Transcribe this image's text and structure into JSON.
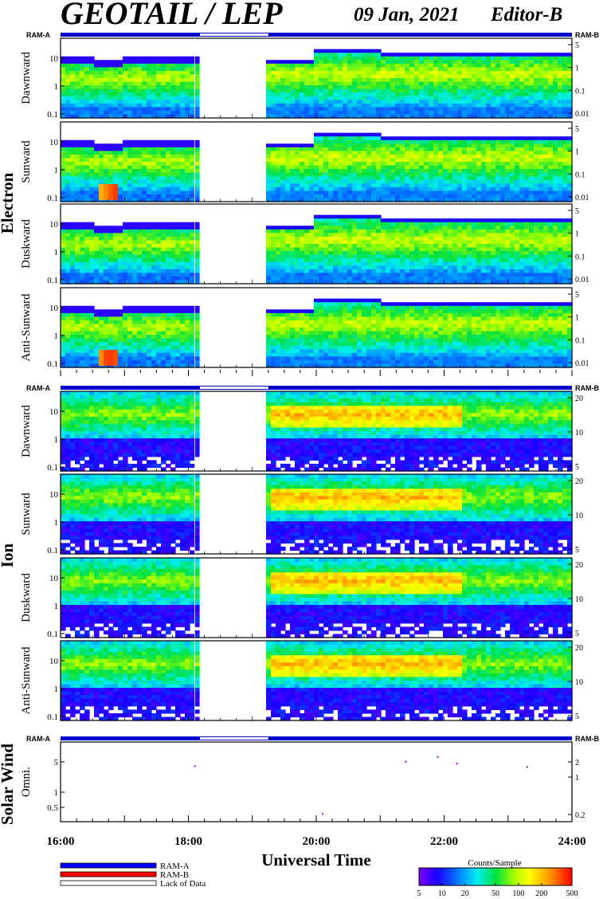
{
  "chart_data": {
    "type": "heatmap",
    "title": "GEOTAIL / LEP",
    "date": "09 Jan, 2021",
    "editor": "Editor-B",
    "xlabel": "Universal Time",
    "x_ticks": [
      "16:00",
      "18:00",
      "20:00",
      "22:00",
      "24:00"
    ],
    "x_range_hours": [
      16,
      24
    ],
    "data_gap_hours": [
      18.18,
      19.25
    ],
    "ram_label_left": "RAM-A",
    "ram_label_right": "RAM-B",
    "species": [
      {
        "name": "Electron",
        "panels": [
          {
            "label": "Dawnward",
            "y_ticks": [
              "10",
              "1",
              "0.1"
            ],
            "right_ticks": [
              "5",
              "1",
              "0.1",
              "0.01"
            ],
            "bursts": false
          },
          {
            "label": "Sunward",
            "y_ticks": [
              "10",
              "1",
              "0.1"
            ],
            "right_ticks": [
              "5",
              "1",
              "0.1",
              "0.01"
            ],
            "bursts": true
          },
          {
            "label": "Duskward",
            "y_ticks": [
              "10",
              "1",
              "0.1"
            ],
            "right_ticks": [
              "5",
              "1",
              "0.1",
              "0.01"
            ],
            "bursts": false
          },
          {
            "label": "Anti-Sunward",
            "y_ticks": [
              "10",
              "1",
              "0.1"
            ],
            "right_ticks": [
              "5",
              "1",
              "0.1",
              "0.01"
            ],
            "bursts": true
          }
        ]
      },
      {
        "name": "Ion",
        "panels": [
          {
            "label": "Dawnward",
            "y_ticks": [
              "10",
              "1",
              "0.1"
            ],
            "right_ticks": [
              "20",
              "10",
              "5"
            ]
          },
          {
            "label": "Sunward",
            "y_ticks": [
              "10",
              "1",
              "0.1"
            ],
            "right_ticks": [
              "20",
              "10",
              "5"
            ]
          },
          {
            "label": "Duskward",
            "y_ticks": [
              "10",
              "1",
              "0.1"
            ],
            "right_ticks": [
              "20",
              "10",
              "5"
            ]
          },
          {
            "label": "Anti-Sunward",
            "y_ticks": [
              "10",
              "1",
              "0.1"
            ],
            "right_ticks": [
              "20",
              "10",
              "5"
            ]
          }
        ]
      }
    ],
    "solar_wind": {
      "name": "Solar Wind",
      "panel_label": "Omni.",
      "y_ticks": [
        "5",
        "1",
        "0.5"
      ],
      "right_ticks": [
        "2",
        "1",
        "0.2"
      ],
      "points": [
        {
          "t": 18.1,
          "y": 4.2
        },
        {
          "t": 20.1,
          "y": 0.35
        },
        {
          "t": 21.4,
          "y": 5.3
        },
        {
          "t": 21.9,
          "y": 6.8
        },
        {
          "t": 22.2,
          "y": 4.8
        },
        {
          "t": 23.3,
          "y": 4.0
        }
      ]
    },
    "legend": [
      {
        "label": "RAM-A",
        "color": "#0000ff"
      },
      {
        "label": "RAM-B",
        "color": "#ff0000"
      },
      {
        "label": "Lack of Data",
        "color": "#ffffff"
      }
    ],
    "colorbar": {
      "title": "Counts/Sample",
      "ticks": [
        "5",
        "10",
        "20",
        "50",
        "100",
        "200",
        "500"
      ],
      "range": [
        5,
        500
      ],
      "scale": "log"
    }
  }
}
